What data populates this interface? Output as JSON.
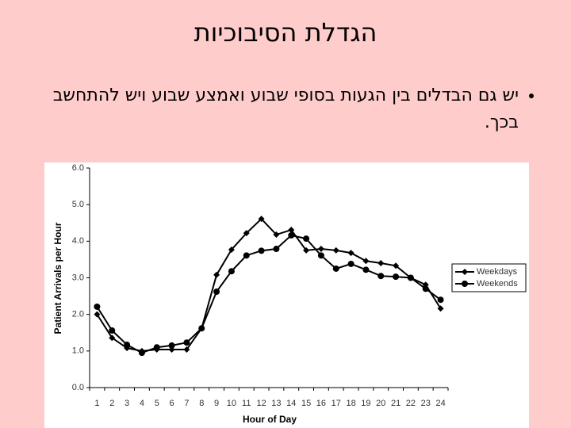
{
  "slide": {
    "title": "הגדלת הסיבוכיות",
    "bullets": [
      "יש גם הבדלים בין הגעות בסופי שבוע ואמצע שבוע ויש להתחשב בכך."
    ]
  },
  "chart_data": {
    "type": "line",
    "x_label": "Hour of Day",
    "y_label": "Patient Arrivals per Hour",
    "categories": [
      "1",
      "2",
      "3",
      "4",
      "5",
      "6",
      "7",
      "8",
      "9",
      "10",
      "11",
      "12",
      "13",
      "14",
      "15",
      "16",
      "17",
      "18",
      "19",
      "20",
      "21",
      "22",
      "23",
      "24"
    ],
    "series": [
      {
        "name": "Weekdays",
        "color": "#000000",
        "marker": "diamond",
        "values": [
          2.0,
          1.36,
          1.08,
          1.0,
          1.04,
          1.04,
          1.04,
          1.62,
          3.08,
          3.77,
          4.22,
          4.61,
          4.18,
          4.31,
          3.75,
          3.79,
          3.75,
          3.68,
          3.46,
          3.4,
          3.33,
          3.0,
          2.81,
          2.16
        ]
      },
      {
        "name": "Weekends",
        "color": "#000000",
        "marker": "circle",
        "values": [
          2.21,
          1.56,
          1.17,
          0.95,
          1.1,
          1.15,
          1.23,
          1.62,
          2.62,
          3.18,
          3.61,
          3.74,
          3.79,
          4.16,
          4.07,
          3.61,
          3.25,
          3.38,
          3.22,
          3.05,
          3.03,
          3.0,
          2.7,
          2.4
        ]
      }
    ],
    "ylim": [
      0,
      6
    ],
    "yticks": [
      {
        "value": 0,
        "label": "0.0"
      },
      {
        "value": 1,
        "label": "1.0"
      },
      {
        "value": 2,
        "label": "2.0"
      },
      {
        "value": 3,
        "label": "3.0"
      },
      {
        "value": 4,
        "label": "4.0"
      },
      {
        "value": 5,
        "label": "5.0"
      },
      {
        "value": 6,
        "label": "6.0"
      }
    ],
    "grid": false,
    "legend": "right"
  }
}
